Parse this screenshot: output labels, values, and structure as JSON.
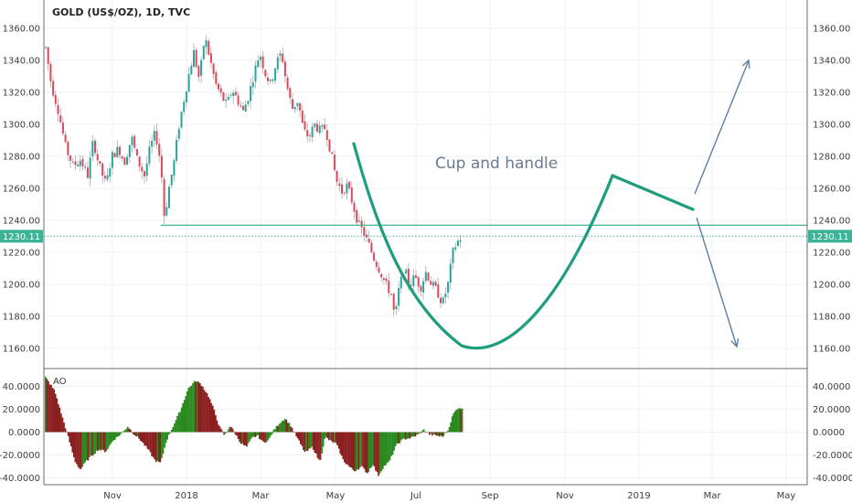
{
  "chart_data": [
    {
      "type": "candlestick",
      "title": "GOLD (US$/OZ), 1D, TVC",
      "y_ticks": [
        "1360.00",
        "1340.00",
        "1320.00",
        "1300.00",
        "1280.00",
        "1260.00",
        "1240.00",
        "1220.00",
        "1200.00",
        "1180.00",
        "1160.00"
      ],
      "ylim": [
        1150,
        1368
      ],
      "x_ticks": [
        "Nov",
        "2018",
        "Mar",
        "May",
        "Jul",
        "Sep",
        "Nov",
        "2019",
        "Mar",
        "May"
      ],
      "grid": true,
      "last_price_label": "1230.11",
      "last_price": 1230.11,
      "support_level": 1237,
      "colors": {
        "up": "#26a69a",
        "down": "#e0475c",
        "wick": "#a8a8a8",
        "pattern": "#1e9e7c",
        "arrows": "#5f7fa0",
        "price_line": "#3cb394"
      },
      "annotation": "Cup and handle",
      "price_path": [
        [
          0,
          1348
        ],
        [
          6,
          1325
        ],
        [
          14,
          1308
        ],
        [
          22,
          1285
        ],
        [
          30,
          1274
        ],
        [
          38,
          1278
        ],
        [
          46,
          1268
        ],
        [
          52,
          1290
        ],
        [
          58,
          1275
        ],
        [
          66,
          1262
        ],
        [
          72,
          1280
        ],
        [
          80,
          1285
        ],
        [
          86,
          1276
        ],
        [
          94,
          1292
        ],
        [
          100,
          1278
        ],
        [
          108,
          1268
        ],
        [
          114,
          1285
        ],
        [
          120,
          1295
        ],
        [
          126,
          1275
        ],
        [
          130,
          1240
        ],
        [
          134,
          1258
        ],
        [
          140,
          1275
        ],
        [
          146,
          1300
        ],
        [
          152,
          1318
        ],
        [
          158,
          1335
        ],
        [
          162,
          1345
        ],
        [
          168,
          1328
        ],
        [
          174,
          1355
        ],
        [
          180,
          1340
        ],
        [
          186,
          1325
        ],
        [
          192,
          1318
        ],
        [
          198,
          1312
        ],
        [
          204,
          1322
        ],
        [
          210,
          1315
        ],
        [
          216,
          1308
        ],
        [
          222,
          1318
        ],
        [
          228,
          1332
        ],
        [
          234,
          1345
        ],
        [
          240,
          1332
        ],
        [
          246,
          1325
        ],
        [
          252,
          1338
        ],
        [
          258,
          1345
        ],
        [
          262,
          1330
        ],
        [
          266,
          1318
        ],
        [
          270,
          1310
        ],
        [
          276,
          1315
        ],
        [
          282,
          1296
        ],
        [
          288,
          1292
        ],
        [
          294,
          1300
        ],
        [
          300,
          1296
        ],
        [
          306,
          1298
        ],
        [
          312,
          1282
        ],
        [
          318,
          1265
        ],
        [
          324,
          1258
        ],
        [
          330,
          1262
        ],
        [
          336,
          1250
        ],
        [
          342,
          1238
        ],
        [
          348,
          1232
        ],
        [
          354,
          1224
        ],
        [
          360,
          1215
        ],
        [
          366,
          1208
        ],
        [
          372,
          1200
        ],
        [
          378,
          1194
        ],
        [
          382,
          1178
        ],
        [
          386,
          1196
        ],
        [
          392,
          1210
        ],
        [
          398,
          1200
        ],
        [
          404,
          1205
        ],
        [
          410,
          1198
        ],
        [
          416,
          1208
        ],
        [
          422,
          1200
        ],
        [
          428,
          1196
        ],
        [
          434,
          1188
        ],
        [
          440,
          1200
        ],
        [
          446,
          1222
        ],
        [
          452,
          1228
        ],
        [
          456,
          1230
        ]
      ]
    },
    {
      "type": "bar",
      "title": "AO",
      "y_ticks": [
        "40.0000",
        "20.0000",
        "0.0000",
        "-20.0000",
        "-40.0000"
      ],
      "ylim": [
        -42,
        52
      ],
      "colors": {
        "rising": "#2a8a1f",
        "falling": "#8b1e1e"
      },
      "values_path": [
        [
          0,
          48
        ],
        [
          10,
          36
        ],
        [
          18,
          14
        ],
        [
          24,
          -2
        ],
        [
          32,
          -25
        ],
        [
          38,
          -33
        ],
        [
          44,
          -26
        ],
        [
          50,
          -21
        ],
        [
          58,
          -15
        ],
        [
          66,
          -17
        ],
        [
          74,
          -7
        ],
        [
          82,
          -2
        ],
        [
          90,
          5
        ],
        [
          96,
          -1
        ],
        [
          104,
          -7
        ],
        [
          112,
          -15
        ],
        [
          120,
          -25
        ],
        [
          126,
          -27
        ],
        [
          132,
          -8
        ],
        [
          140,
          6
        ],
        [
          148,
          20
        ],
        [
          156,
          38
        ],
        [
          164,
          45
        ],
        [
          170,
          42
        ],
        [
          178,
          32
        ],
        [
          184,
          20
        ],
        [
          190,
          5
        ],
        [
          196,
          -3
        ],
        [
          202,
          6
        ],
        [
          208,
          -2
        ],
        [
          214,
          -10
        ],
        [
          220,
          -13
        ],
        [
          226,
          -5
        ],
        [
          232,
          -3
        ],
        [
          238,
          -9
        ],
        [
          244,
          -7
        ],
        [
          250,
          2
        ],
        [
          256,
          8
        ],
        [
          262,
          12
        ],
        [
          268,
          6
        ],
        [
          276,
          -6
        ],
        [
          284,
          -18
        ],
        [
          292,
          -13
        ],
        [
          300,
          -26
        ],
        [
          306,
          -4
        ],
        [
          312,
          -8
        ],
        [
          318,
          -10
        ],
        [
          326,
          -25
        ],
        [
          332,
          -30
        ],
        [
          338,
          -34
        ],
        [
          346,
          -30
        ],
        [
          352,
          -36
        ],
        [
          358,
          -28
        ],
        [
          364,
          -38
        ],
        [
          370,
          -30
        ],
        [
          376,
          -26
        ],
        [
          384,
          -11
        ],
        [
          392,
          -6
        ],
        [
          400,
          -5
        ],
        [
          408,
          -2
        ],
        [
          414,
          2
        ],
        [
          420,
          -2
        ],
        [
          428,
          -3
        ],
        [
          434,
          -4
        ],
        [
          440,
          1
        ],
        [
          446,
          16
        ],
        [
          452,
          22
        ],
        [
          456,
          20
        ]
      ]
    }
  ]
}
